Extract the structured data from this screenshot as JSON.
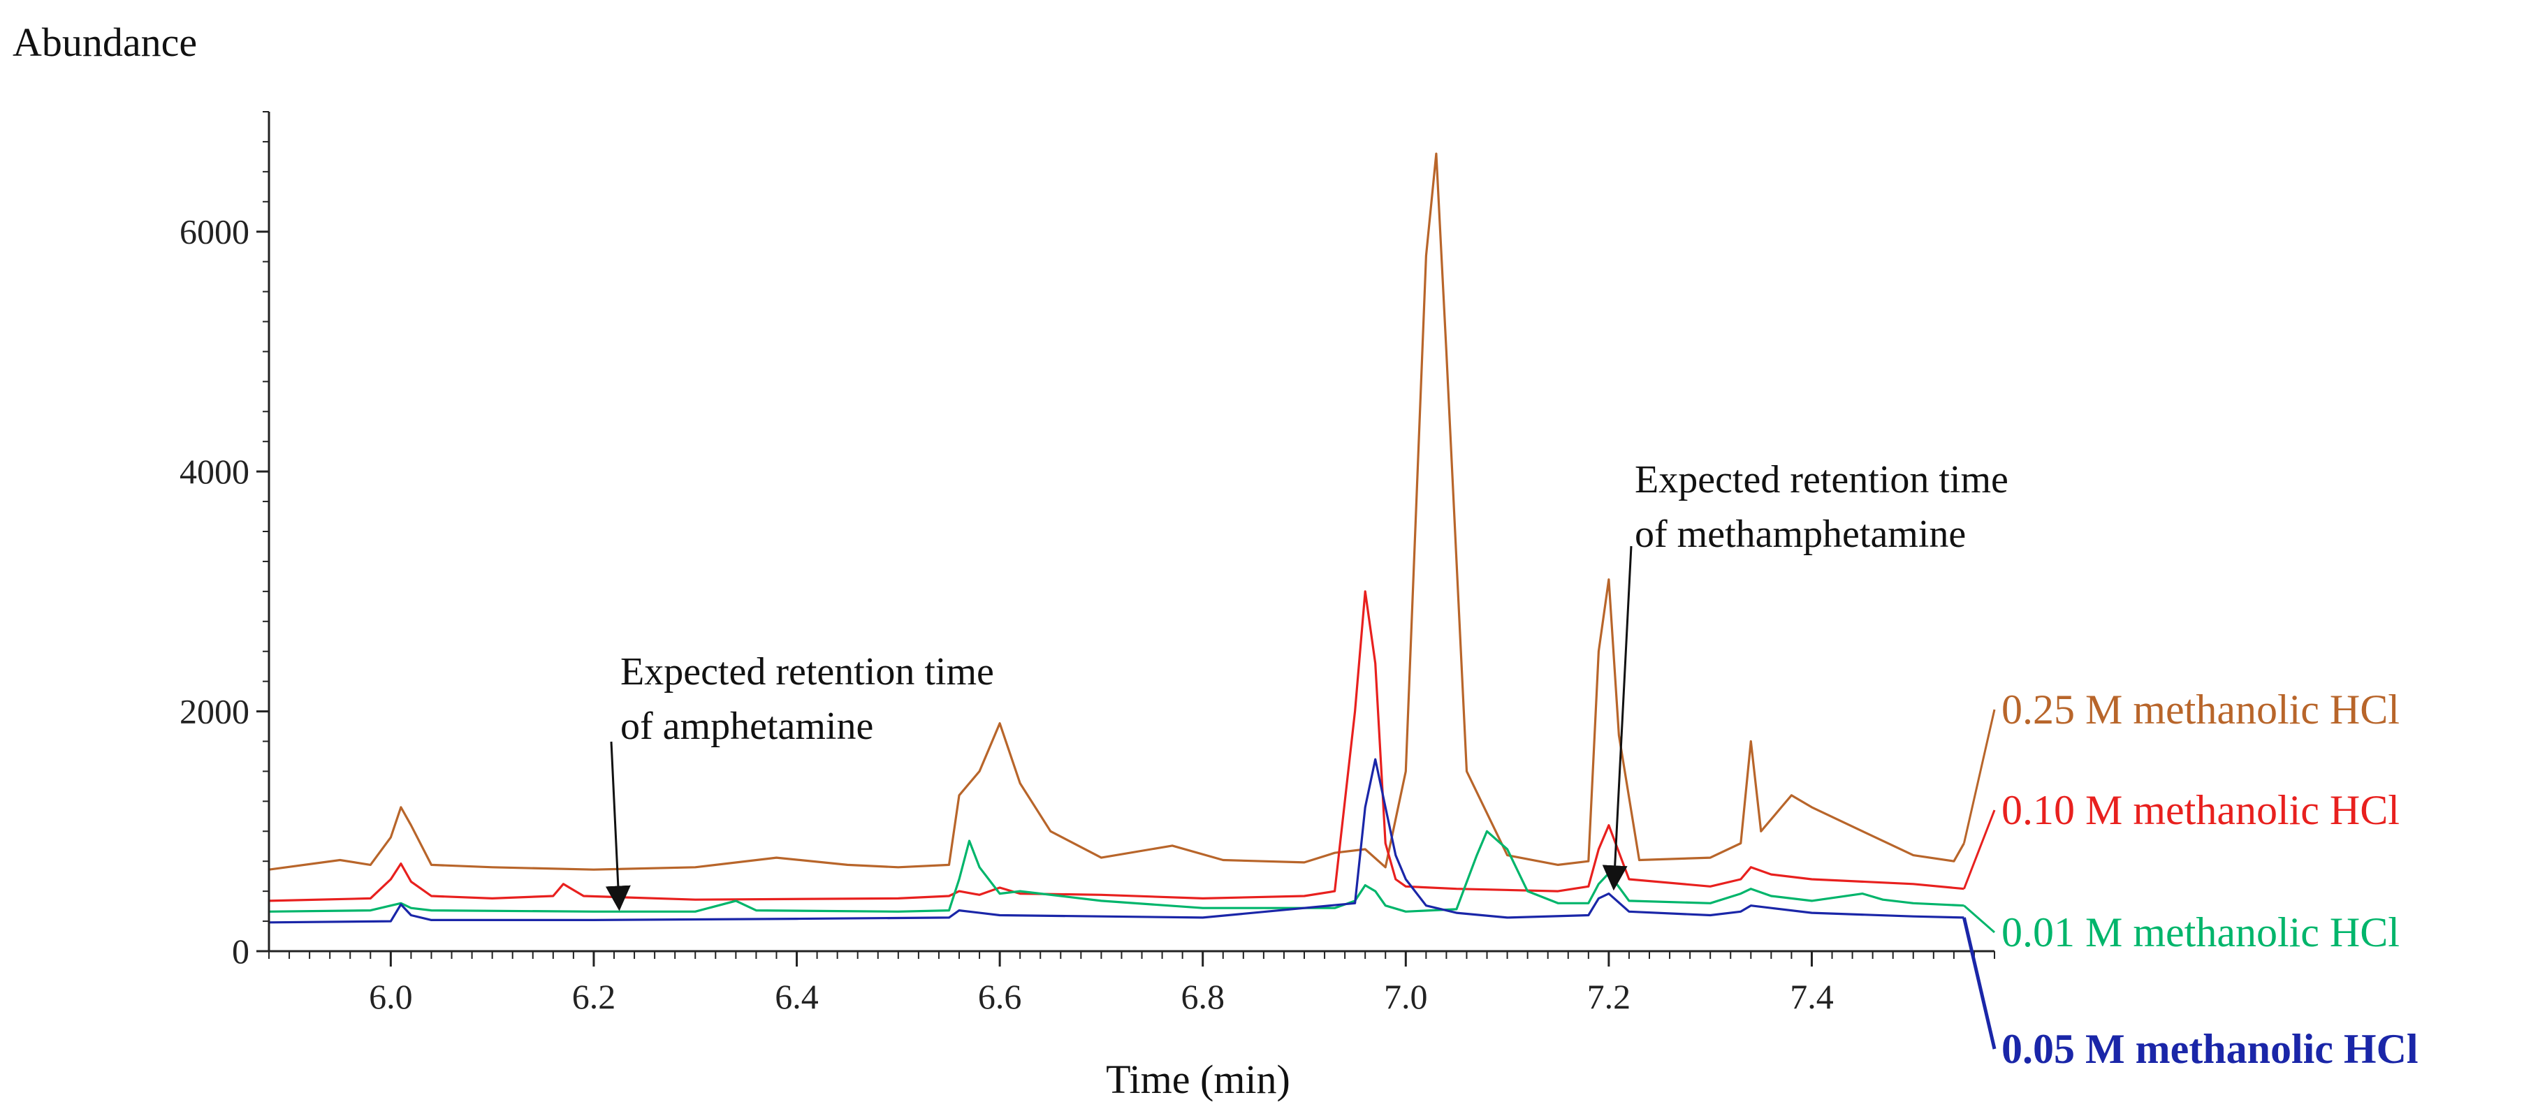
{
  "chart_data": {
    "type": "line",
    "title": "",
    "ylabel": "Abundance",
    "xlabel": "Time (min)",
    "xlim": [
      5.88,
      7.58
    ],
    "ylim": [
      0,
      7000
    ],
    "xticks": [
      6.0,
      6.2,
      6.4,
      6.6,
      6.8,
      7.0,
      7.2,
      7.4
    ],
    "xtick_labels": [
      "6.0",
      "6.2",
      "6.4",
      "6.6",
      "6.8",
      "7.0",
      "7.2",
      "7.4"
    ],
    "yticks": [
      0,
      2000,
      4000,
      6000
    ],
    "ytick_labels": [
      "0",
      "2000",
      "4000",
      "6000"
    ],
    "annotations": [
      {
        "line1": "Expected  retention  time",
        "line2": "of  amphetamine",
        "target_x": 6.225,
        "target_y": 300
      },
      {
        "line1": "Expected  retention  time",
        "line2": "of  methamphetamine",
        "target_x": 7.205,
        "target_y": 470
      }
    ],
    "series": [
      {
        "name": "0.25 M methanolic HCl",
        "color": "#b8652a",
        "bold": false,
        "x": [
          5.88,
          5.95,
          5.98,
          6.0,
          6.01,
          6.02,
          6.04,
          6.1,
          6.2,
          6.3,
          6.38,
          6.45,
          6.5,
          6.55,
          6.56,
          6.57,
          6.58,
          6.59,
          6.6,
          6.62,
          6.65,
          6.7,
          6.77,
          6.82,
          6.9,
          6.93,
          6.96,
          6.98,
          7.0,
          7.02,
          7.03,
          7.04,
          7.06,
          7.1,
          7.15,
          7.18,
          7.19,
          7.2,
          7.21,
          7.23,
          7.3,
          7.33,
          7.34,
          7.35,
          7.37,
          7.38,
          7.4,
          7.45,
          7.5,
          7.54,
          7.55
        ],
        "values": [
          680,
          760,
          720,
          950,
          1200,
          1050,
          720,
          700,
          680,
          700,
          780,
          720,
          700,
          720,
          1300,
          1400,
          1500,
          1700,
          1900,
          1400,
          1000,
          780,
          880,
          760,
          740,
          820,
          850,
          700,
          1500,
          5800,
          6650,
          5000,
          1500,
          800,
          720,
          750,
          2500,
          3100,
          1800,
          760,
          780,
          900,
          1750,
          1000,
          1200,
          1300,
          1200,
          1000,
          800,
          750,
          900
        ]
      },
      {
        "name": "0.10 M methanolic HCl",
        "color": "#e8201e",
        "bold": false,
        "x": [
          5.88,
          5.98,
          6.0,
          6.01,
          6.02,
          6.04,
          6.1,
          6.16,
          6.17,
          6.19,
          6.3,
          6.5,
          6.55,
          6.56,
          6.58,
          6.6,
          6.62,
          6.7,
          6.8,
          6.9,
          6.93,
          6.95,
          6.96,
          6.97,
          6.98,
          6.99,
          7.0,
          7.05,
          7.15,
          7.18,
          7.19,
          7.2,
          7.22,
          7.3,
          7.33,
          7.34,
          7.36,
          7.4,
          7.5,
          7.55
        ],
        "values": [
          420,
          440,
          600,
          730,
          580,
          460,
          440,
          460,
          560,
          460,
          430,
          440,
          460,
          500,
          470,
          530,
          480,
          470,
          440,
          460,
          500,
          2000,
          3000,
          2400,
          900,
          600,
          540,
          520,
          500,
          540,
          850,
          1050,
          600,
          540,
          600,
          700,
          640,
          600,
          560,
          520
        ]
      },
      {
        "name": "0.01 M methanolic HCl",
        "color": "#00b56b",
        "bold": false,
        "x": [
          5.88,
          5.98,
          6.0,
          6.01,
          6.02,
          6.04,
          6.2,
          6.3,
          6.34,
          6.36,
          6.5,
          6.55,
          6.56,
          6.57,
          6.58,
          6.6,
          6.62,
          6.7,
          6.8,
          6.93,
          6.95,
          6.96,
          6.97,
          6.98,
          7.0,
          7.05,
          7.07,
          7.08,
          7.1,
          7.12,
          7.15,
          7.18,
          7.19,
          7.2,
          7.22,
          7.3,
          7.33,
          7.34,
          7.36,
          7.4,
          7.45,
          7.47,
          7.5,
          7.55
        ],
        "values": [
          330,
          340,
          380,
          400,
          360,
          340,
          330,
          330,
          420,
          340,
          330,
          340,
          600,
          920,
          700,
          480,
          500,
          420,
          360,
          360,
          420,
          550,
          500,
          380,
          330,
          350,
          800,
          1000,
          850,
          500,
          400,
          400,
          560,
          650,
          420,
          400,
          480,
          520,
          460,
          420,
          480,
          430,
          400,
          380
        ]
      },
      {
        "name": "0.05 M methanolic HCl",
        "color": "#1a26a8",
        "bold": true,
        "x": [
          5.88,
          6.0,
          6.01,
          6.02,
          6.04,
          6.2,
          6.4,
          6.55,
          6.56,
          6.6,
          6.7,
          6.8,
          6.95,
          6.96,
          6.97,
          6.98,
          6.99,
          7.0,
          7.02,
          7.05,
          7.1,
          7.18,
          7.19,
          7.2,
          7.22,
          7.3,
          7.33,
          7.34,
          7.36,
          7.4,
          7.5,
          7.55
        ],
        "values": [
          240,
          250,
          390,
          300,
          260,
          260,
          270,
          280,
          340,
          300,
          290,
          280,
          400,
          1200,
          1600,
          1200,
          800,
          600,
          380,
          320,
          280,
          300,
          440,
          480,
          330,
          300,
          330,
          380,
          360,
          320,
          290,
          280
        ]
      }
    ]
  }
}
